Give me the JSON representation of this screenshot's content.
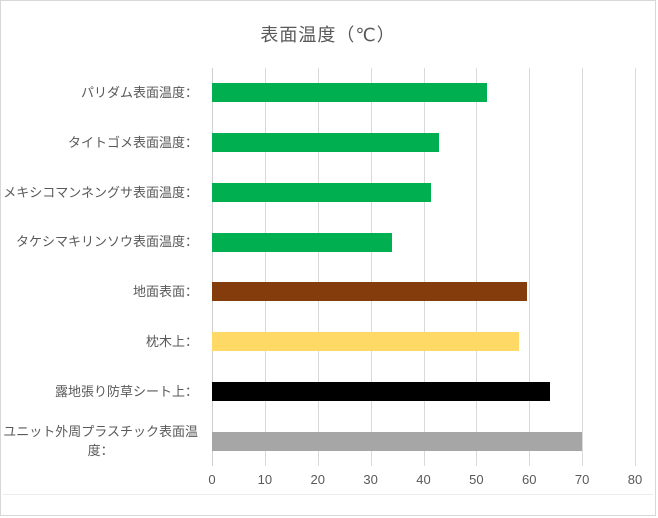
{
  "chart_data": {
    "type": "bar",
    "orientation": "horizontal",
    "title": "表面温度（℃）",
    "categories": [
      "パリダム表面温度：",
      "タイトゴメ表面温度：",
      "メキシコマンネングサ表面温度：",
      "タケシマキリンソウ表面温度：",
      "地面表面：",
      "枕木上：",
      "露地張り防草シート上：",
      "ユニット外周プラスチック表面温\n度："
    ],
    "values": [
      52,
      43,
      41.5,
      34,
      59.5,
      58,
      64,
      70
    ],
    "bar_colors": [
      "#00B050",
      "#00B050",
      "#00B050",
      "#00B050",
      "#843C0C",
      "#FFD966",
      "#000000",
      "#A6A6A6"
    ],
    "xlabel": "",
    "ylabel": "",
    "xlim": [
      0,
      80
    ],
    "x_ticks": [
      "0",
      "10",
      "20",
      "30",
      "40",
      "50",
      "60",
      "70",
      "80"
    ],
    "gridlines": "vertical",
    "legend": "none",
    "colors": {
      "text": "#595959",
      "gridline": "#D9D9D9",
      "chart_border": "#D7D7D7",
      "background": "#FFFFFF"
    }
  }
}
